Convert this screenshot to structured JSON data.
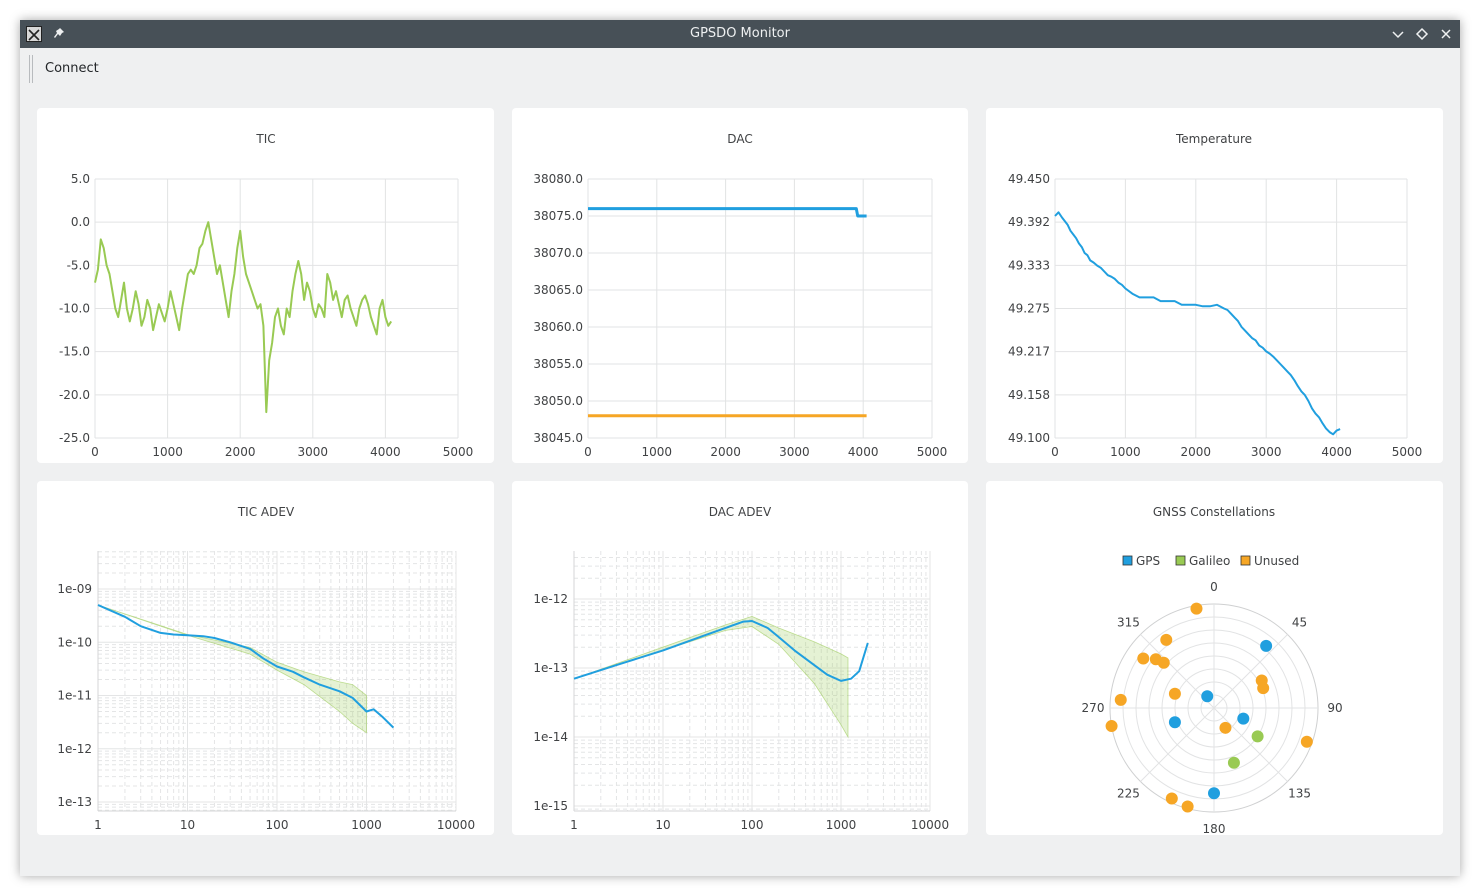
{
  "window": {
    "title": "GPSDO Monitor"
  },
  "toolbar": {
    "connect_label": "Connect"
  },
  "icons": {
    "app": "x-app-icon",
    "pin": "pin-icon",
    "minimize": "chevron-down-icon",
    "maximize": "diamond-icon",
    "close": "close-icon"
  },
  "colors": {
    "blue": "#209fdf",
    "green": "#99ca53",
    "orange": "#f6a625"
  },
  "charts": {
    "tic": {
      "title": "TIC",
      "yticks": [
        "5.0",
        "0.0",
        "-5.0",
        "-10.0",
        "-15.0",
        "-20.0",
        "-25.0"
      ],
      "xticks": [
        "0",
        "1000",
        "2000",
        "3000",
        "4000",
        "5000"
      ]
    },
    "dac": {
      "title": "DAC",
      "yticks": [
        "38080.0",
        "38075.0",
        "38070.0",
        "38065.0",
        "38060.0",
        "38055.0",
        "38050.0",
        "38045.0"
      ],
      "xticks": [
        "0",
        "1000",
        "2000",
        "3000",
        "4000",
        "5000"
      ]
    },
    "temperature": {
      "title": "Temperature",
      "yticks": [
        "49.450",
        "49.392",
        "49.333",
        "49.275",
        "49.217",
        "49.158",
        "49.100"
      ],
      "xticks": [
        "0",
        "1000",
        "2000",
        "3000",
        "4000",
        "5000"
      ]
    },
    "tic_adev": {
      "title": "TIC ADEV",
      "yticks": [
        "1e-09",
        "1e-10",
        "1e-11",
        "1e-12",
        "1e-13"
      ],
      "xticks": [
        "1",
        "10",
        "100",
        "1000",
        "10000"
      ]
    },
    "dac_adev": {
      "title": "DAC ADEV",
      "yticks": [
        "1e-12",
        "1e-13",
        "1e-14",
        "1e-15"
      ],
      "xticks": [
        "1",
        "10",
        "100",
        "1000",
        "10000"
      ]
    },
    "gnss": {
      "title": "GNSS Constellations",
      "legend": [
        "GPS",
        "Galileo",
        "Unused"
      ],
      "angle_labels": [
        "0",
        "45",
        "90",
        "135",
        "180",
        "225",
        "270",
        "315"
      ]
    }
  },
  "chart_data": [
    {
      "type": "line",
      "title": "TIC",
      "xlim": [
        0,
        5000
      ],
      "ylim": [
        -25,
        5
      ],
      "grid": true,
      "series": [
        {
          "color": "#99ca53",
          "x": [
            0,
            40,
            80,
            120,
            160,
            200,
            240,
            280,
            320,
            360,
            400,
            440,
            480,
            520,
            560,
            600,
            640,
            680,
            720,
            760,
            800,
            840,
            880,
            920,
            960,
            1000,
            1040,
            1080,
            1120,
            1160,
            1200,
            1240,
            1280,
            1320,
            1360,
            1400,
            1440,
            1480,
            1520,
            1560,
            1600,
            1640,
            1680,
            1720,
            1760,
            1800,
            1840,
            1880,
            1920,
            1960,
            2000,
            2040,
            2080,
            2120,
            2160,
            2200,
            2240,
            2280,
            2320,
            2360,
            2400,
            2440,
            2480,
            2520,
            2560,
            2600,
            2640,
            2680,
            2720,
            2760,
            2800,
            2840,
            2880,
            2920,
            2960,
            3000,
            3040,
            3080,
            3120,
            3160,
            3200,
            3240,
            3280,
            3320,
            3360,
            3400,
            3440,
            3480,
            3520,
            3560,
            3600,
            3640,
            3680,
            3720,
            3760,
            3800,
            3840,
            3880,
            3920,
            3960,
            4000,
            4040,
            4080
          ],
          "y": [
            -7,
            -5.5,
            -2,
            -3,
            -5,
            -6,
            -8,
            -10,
            -11,
            -9,
            -7,
            -10,
            -11.5,
            -10,
            -8,
            -9.5,
            -12,
            -11,
            -9,
            -10,
            -12.5,
            -11,
            -9.5,
            -10.5,
            -11.5,
            -10,
            -8,
            -9.5,
            -11,
            -12.5,
            -10,
            -8,
            -6,
            -5.5,
            -6,
            -5,
            -3,
            -2.5,
            -1,
            0,
            -2,
            -4,
            -6,
            -5,
            -7,
            -9,
            -11,
            -8,
            -6,
            -3,
            -1,
            -4,
            -6,
            -7,
            -8,
            -9,
            -10,
            -9.5,
            -12,
            -22,
            -16,
            -14,
            -11,
            -10,
            -12,
            -13,
            -10,
            -11,
            -8,
            -6,
            -4.5,
            -6,
            -9,
            -7,
            -8,
            -10,
            -11,
            -9.5,
            -10,
            -11,
            -6,
            -7,
            -9,
            -8,
            -9.5,
            -11,
            -9,
            -8.5,
            -10,
            -11,
            -12,
            -10,
            -9,
            -8.5,
            -9.5,
            -11,
            -12,
            -13,
            -10,
            -9,
            -11,
            -12,
            -11.5
          ]
        }
      ]
    },
    {
      "type": "line",
      "title": "DAC",
      "xlim": [
        0,
        5000
      ],
      "ylim": [
        38045,
        38080
      ],
      "grid": true,
      "series": [
        {
          "color": "#209fdf",
          "x": [
            0,
            3900,
            3920,
            4050
          ],
          "y": [
            38076,
            38076,
            38075,
            38075
          ]
        },
        {
          "color": "#f6a625",
          "x": [
            0,
            4050
          ],
          "y": [
            38048,
            38048
          ]
        }
      ]
    },
    {
      "type": "line",
      "title": "Temperature",
      "xlim": [
        0,
        5000
      ],
      "ylim": [
        49.1,
        49.45
      ],
      "grid": true,
      "series": [
        {
          "color": "#209fdf",
          "x": [
            0,
            50,
            100,
            140,
            180,
            220,
            260,
            300,
            340,
            380,
            420,
            460,
            500,
            550,
            600,
            650,
            700,
            750,
            800,
            850,
            900,
            950,
            1000,
            1100,
            1200,
            1300,
            1400,
            1500,
            1600,
            1700,
            1800,
            1900,
            2000,
            2100,
            2200,
            2300,
            2400,
            2450,
            2500,
            2550,
            2600,
            2650,
            2700,
            2750,
            2800,
            2850,
            2900,
            2950,
            3000,
            3050,
            3100,
            3150,
            3200,
            3250,
            3300,
            3350,
            3400,
            3450,
            3500,
            3550,
            3600,
            3650,
            3700,
            3750,
            3800,
            3850,
            3900,
            3950,
            4000,
            4050
          ],
          "y": [
            49.4,
            49.405,
            49.398,
            49.393,
            49.388,
            49.38,
            49.375,
            49.37,
            49.363,
            49.358,
            49.35,
            49.347,
            49.34,
            49.337,
            49.333,
            49.33,
            49.325,
            49.32,
            49.318,
            49.315,
            49.31,
            49.307,
            49.302,
            49.295,
            49.29,
            49.29,
            49.29,
            49.285,
            49.285,
            49.285,
            49.28,
            49.28,
            49.28,
            49.278,
            49.278,
            49.28,
            49.275,
            49.273,
            49.268,
            49.263,
            49.258,
            49.25,
            49.245,
            49.24,
            49.235,
            49.232,
            49.225,
            49.222,
            49.217,
            49.214,
            49.21,
            49.205,
            49.2,
            49.195,
            49.19,
            49.185,
            49.178,
            49.17,
            49.163,
            49.158,
            49.15,
            49.14,
            49.133,
            49.128,
            49.12,
            49.113,
            49.108,
            49.105,
            49.11,
            49.112
          ]
        }
      ]
    },
    {
      "type": "line",
      "title": "TIC ADEV",
      "xscale": "log",
      "yscale": "log",
      "xlim": [
        1,
        10000
      ],
      "ylim": [
        5e-14,
        3e-09
      ],
      "grid": true,
      "series": [
        {
          "color": "#209fdf",
          "x": [
            1,
            2,
            3,
            5,
            7,
            10,
            15,
            20,
            30,
            50,
            70,
            100,
            150,
            200,
            300,
            500,
            700,
            1000,
            1200,
            1500,
            2000
          ],
          "y": [
            5e-10,
            3e-10,
            2e-10,
            1.5e-10,
            1.4e-10,
            1.35e-10,
            1.3e-10,
            1.2e-10,
            1e-10,
            7.5e-11,
            5e-11,
            3.5e-11,
            2.8e-11,
            2.2e-11,
            1.6e-11,
            1.2e-11,
            9e-12,
            5e-12,
            5.5e-12,
            4e-12,
            2.5e-12
          ]
        },
        {
          "color": "#99ca53",
          "band": true,
          "x": [
            1,
            10,
            50,
            100,
            200,
            500,
            700,
            1000
          ],
          "y_low": [
            5e-10,
            1.35e-10,
            6e-11,
            3e-11,
            1.6e-11,
            5e-12,
            3e-12,
            2e-12
          ],
          "y_high": [
            5e-10,
            1.4e-10,
            8e-11,
            4.2e-11,
            2.8e-11,
            1.8e-11,
            1.6e-11,
            1e-11
          ]
        }
      ]
    },
    {
      "type": "line",
      "title": "DAC ADEV",
      "xscale": "log",
      "yscale": "log",
      "xlim": [
        1,
        10000
      ],
      "ylim": [
        7e-16,
        3e-12
      ],
      "grid": true,
      "series": [
        {
          "color": "#209fdf",
          "x": [
            1,
            3,
            10,
            30,
            80,
            100,
            150,
            200,
            300,
            500,
            700,
            1000,
            1300,
            1600,
            2000
          ],
          "y": [
            7e-14,
            1.1e-13,
            1.8e-13,
            3e-13,
            4.7e-13,
            4.8e-13,
            3.8e-13,
            2.8e-13,
            1.8e-13,
            1.1e-13,
            8e-14,
            6.5e-14,
            7e-14,
            9e-14,
            2.3e-13
          ]
        },
        {
          "color": "#99ca53",
          "band": true,
          "x": [
            1,
            50,
            100,
            200,
            500,
            1000,
            1200
          ],
          "y_low": [
            7e-14,
            3.5e-13,
            4e-13,
            2.2e-13,
            6e-14,
            1.5e-14,
            1e-14
          ],
          "y_high": [
            7e-14,
            4.2e-13,
            5.6e-13,
            3.8e-13,
            2.4e-13,
            1.6e-13,
            1.4e-13
          ]
        }
      ]
    },
    {
      "type": "scatter",
      "title": "GNSS Constellations",
      "coordinates": "polar",
      "legend": [
        "GPS",
        "Galileo",
        "Unused"
      ],
      "legend_position": "top",
      "theta_ticks": [
        0,
        45,
        90,
        135,
        180,
        225,
        270,
        315
      ],
      "series": [
        {
          "name": "GPS",
          "color": "#209fdf",
          "points": [
            [
              40,
              0.78
            ],
            [
              330,
              0.13
            ],
            [
              250,
              0.4
            ],
            [
              110,
              0.3
            ],
            [
              180,
              0.82
            ]
          ]
        },
        {
          "name": "Galileo",
          "color": "#99ca53",
          "points": [
            [
              123,
              0.5
            ],
            [
              160,
              0.56
            ]
          ]
        },
        {
          "name": "Unused",
          "color": "#f6a625",
          "points": [
            [
              350,
              0.97
            ],
            [
              325,
              0.8
            ],
            [
              305,
              0.83
            ],
            [
              310,
              0.73
            ],
            [
              312,
              0.65
            ],
            [
              60,
              0.53
            ],
            [
              68,
              0.51
            ],
            [
              275,
              0.9
            ],
            [
              260,
              1.0
            ],
            [
              290,
              0.4
            ],
            [
              110,
              0.95
            ],
            [
              150,
              0.22
            ],
            [
              205,
              0.96
            ],
            [
              195,
              0.98
            ]
          ]
        }
      ]
    }
  ]
}
